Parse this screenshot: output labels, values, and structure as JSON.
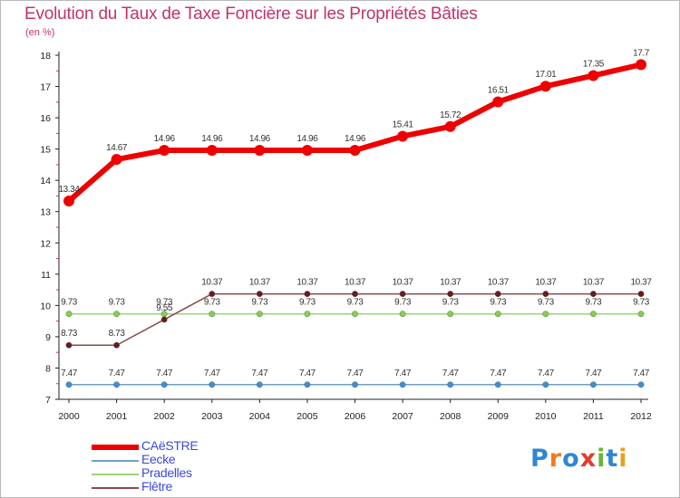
{
  "title": "Evolution du Taux de Taxe Foncière sur les Propriétés Bâties",
  "units": "(en %)",
  "logo": {
    "text": "Proxiti",
    "letters": [
      "P",
      "r",
      "o",
      "x",
      "i",
      "t",
      "i"
    ],
    "colors": [
      "#2f86d3",
      "#f07c1c",
      "#2f86d3",
      "#e23c2c",
      "#6cb23a",
      "#2f86d3",
      "#e9a01d"
    ]
  },
  "chart_data": {
    "type": "line",
    "title": "Evolution du Taux de Taxe Foncière sur les Propriétés Bâties",
    "ylabel": "(en %)",
    "xlabel": "",
    "ylim": [
      7,
      18
    ],
    "yticks": [
      "7",
      "8",
      "9",
      "10",
      "11",
      "12",
      "13",
      "14",
      "15",
      "16",
      "17",
      "18"
    ],
    "categories": [
      "2000",
      "2001",
      "2002",
      "2003",
      "2004",
      "2005",
      "2006",
      "2007",
      "2008",
      "2009",
      "2010",
      "2011",
      "2012"
    ],
    "grid": false,
    "legend_position": "bottom-left",
    "series": [
      {
        "name": "CAëSTRE",
        "color": "#ee0000",
        "marker": "#ee0000",
        "width": 6,
        "values": [
          13.34,
          14.67,
          14.96,
          14.96,
          14.96,
          14.96,
          14.96,
          15.41,
          15.72,
          16.51,
          17.01,
          17.35,
          17.7
        ],
        "labels": [
          "13.34",
          "14.67",
          "14.96",
          "14.96",
          "14.96",
          "14.96",
          "14.96",
          "15.41",
          "15.72",
          "16.51",
          "17.01",
          "17.35",
          "17.7"
        ]
      },
      {
        "name": "Eecke",
        "color": "#6fa0c8",
        "marker": "#3d8fd6",
        "width": 1.5,
        "values": [
          7.47,
          7.47,
          7.47,
          7.47,
          7.47,
          7.47,
          7.47,
          7.47,
          7.47,
          7.47,
          7.47,
          7.47,
          7.47
        ],
        "labels": [
          "7.47",
          "7.47",
          "7.47",
          "7.47",
          "7.47",
          "7.47",
          "7.47",
          "7.47",
          "7.47",
          "7.47",
          "7.47",
          "7.47",
          "7.47"
        ]
      },
      {
        "name": "Pradelles",
        "color": "#9cd47a",
        "marker": "#7ed348",
        "width": 1.5,
        "values": [
          9.73,
          9.73,
          9.73,
          9.73,
          9.73,
          9.73,
          9.73,
          9.73,
          9.73,
          9.73,
          9.73,
          9.73,
          9.73
        ],
        "labels": [
          "9.73",
          "9.73",
          "9.73",
          "9.73",
          "9.73",
          "9.73",
          "9.73",
          "9.73",
          "9.73",
          "9.73",
          "9.73",
          "9.73",
          "9.73"
        ]
      },
      {
        "name": "Flêtre",
        "color": "#8a4a4a",
        "marker": "#6a1a1a",
        "width": 1.5,
        "values": [
          8.73,
          8.73,
          9.55,
          10.37,
          10.37,
          10.37,
          10.37,
          10.37,
          10.37,
          10.37,
          10.37,
          10.37,
          10.37
        ],
        "labels": [
          "8.73",
          "8.73",
          "9.55",
          "10.37",
          "10.37",
          "10.37",
          "10.37",
          "10.37",
          "10.37",
          "10.37",
          "10.37",
          "10.37",
          "10.37"
        ]
      }
    ]
  }
}
